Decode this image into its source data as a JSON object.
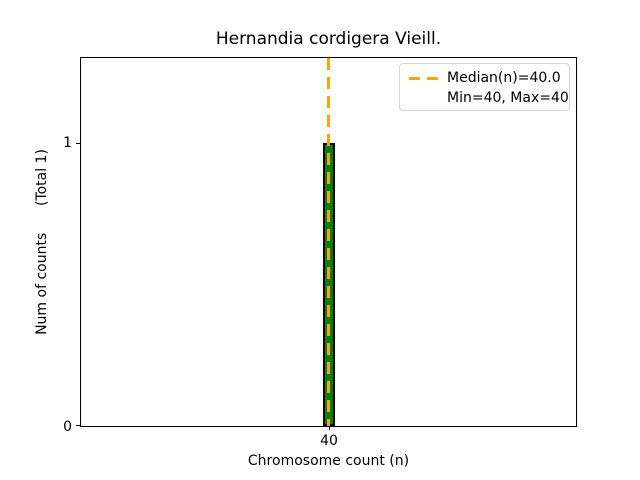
{
  "chart_data": {
    "type": "bar",
    "title": "Hernandia cordigera Vieill.",
    "xlabel": "Chromosome count (n)",
    "ylabel": "Num of counts      (Total 1)",
    "categories": [
      40
    ],
    "values": [
      1
    ],
    "total_counts": 1,
    "median": 40.0,
    "min": 40,
    "max": 40,
    "xticks": [
      "40"
    ],
    "yticks": [
      "0",
      "1"
    ],
    "ylim": [
      0,
      1.3
    ],
    "grid": false,
    "legend": [
      "Median(n)=40.0",
      "Min=40, Max=40"
    ],
    "legend_position": "upper right",
    "bar_color": "#008000",
    "bar_edge_color": "#000000",
    "median_line_color": "#FFA500",
    "median_line_style": "dashed",
    "spine_color": "#000000",
    "background_color": "#ffffff",
    "legend_border_color": "#d5d5d5"
  }
}
